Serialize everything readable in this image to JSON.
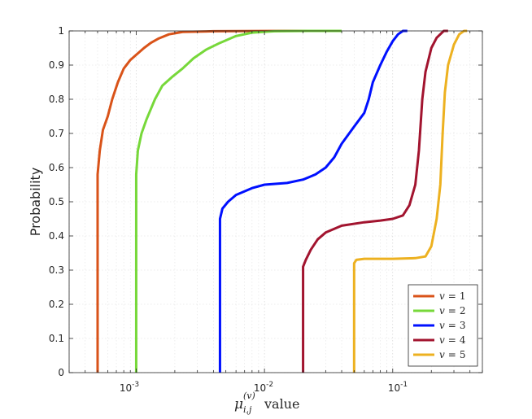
{
  "chart_data": {
    "type": "line",
    "x_scale": "log",
    "xlim": [
      0.0003,
      0.5
    ],
    "ylim": [
      0,
      1
    ],
    "x_major_ticks": [
      0.001,
      0.01,
      0.1
    ],
    "x_tick_labels": [
      {
        "base": "10",
        "exp": "-3"
      },
      {
        "base": "10",
        "exp": "-2"
      },
      {
        "base": "10",
        "exp": "-1"
      }
    ],
    "y_ticks": [
      0,
      0.1,
      0.2,
      0.3,
      0.4,
      0.5,
      0.6,
      0.7,
      0.8,
      0.9,
      1
    ],
    "y_tick_labels": [
      "0",
      "0.1",
      "0.2",
      "0.3",
      "0.4",
      "0.5",
      "0.6",
      "0.7",
      "0.8",
      "0.9",
      "1"
    ],
    "grid": true,
    "legend_position": "bottom-right",
    "xlabel": {
      "mu": "μ",
      "sup": "(v)",
      "sub": "i,j",
      "suffix": "value"
    },
    "ylabel": "Probability",
    "series": [
      {
        "name": "v = 1",
        "legend": {
          "var": "v",
          "eq": "=",
          "num": "1"
        },
        "color": "#D95319",
        "points": [
          [
            0.0005,
            0
          ],
          [
            0.0005,
            0.58
          ],
          [
            0.00052,
            0.65
          ],
          [
            0.00055,
            0.71
          ],
          [
            0.0006,
            0.75
          ],
          [
            0.00065,
            0.8
          ],
          [
            0.00072,
            0.85
          ],
          [
            0.0008,
            0.89
          ],
          [
            0.0009,
            0.915
          ],
          [
            0.001,
            0.93
          ],
          [
            0.00115,
            0.95
          ],
          [
            0.0013,
            0.965
          ],
          [
            0.0015,
            0.978
          ],
          [
            0.0018,
            0.99
          ],
          [
            0.0023,
            0.997
          ],
          [
            0.004,
            0.999
          ],
          [
            0.015,
            1
          ],
          [
            0.033,
            1
          ]
        ]
      },
      {
        "name": "v = 2",
        "legend": {
          "var": "v",
          "eq": "=",
          "num": "2"
        },
        "color": "#77D83A",
        "points": [
          [
            0.001,
            0
          ],
          [
            0.001,
            0.58
          ],
          [
            0.00103,
            0.65
          ],
          [
            0.0011,
            0.7
          ],
          [
            0.0012,
            0.74
          ],
          [
            0.0014,
            0.8
          ],
          [
            0.0016,
            0.84
          ],
          [
            0.0019,
            0.865
          ],
          [
            0.0023,
            0.89
          ],
          [
            0.0028,
            0.92
          ],
          [
            0.0035,
            0.945
          ],
          [
            0.0045,
            0.965
          ],
          [
            0.006,
            0.985
          ],
          [
            0.008,
            0.995
          ],
          [
            0.012,
            0.999
          ],
          [
            0.022,
            1
          ],
          [
            0.04,
            1
          ]
        ]
      },
      {
        "name": "v = 3",
        "legend": {
          "var": "v",
          "eq": "=",
          "num": "3"
        },
        "color": "#0010FF",
        "points": [
          [
            0.0045,
            0
          ],
          [
            0.0045,
            0.45
          ],
          [
            0.0047,
            0.48
          ],
          [
            0.0052,
            0.5
          ],
          [
            0.006,
            0.52
          ],
          [
            0.008,
            0.54
          ],
          [
            0.01,
            0.55
          ],
          [
            0.015,
            0.555
          ],
          [
            0.02,
            0.565
          ],
          [
            0.025,
            0.58
          ],
          [
            0.03,
            0.6
          ],
          [
            0.035,
            0.63
          ],
          [
            0.04,
            0.67
          ],
          [
            0.05,
            0.72
          ],
          [
            0.06,
            0.76
          ],
          [
            0.065,
            0.8
          ],
          [
            0.07,
            0.85
          ],
          [
            0.08,
            0.9
          ],
          [
            0.09,
            0.94
          ],
          [
            0.1,
            0.97
          ],
          [
            0.11,
            0.99
          ],
          [
            0.12,
            1
          ],
          [
            0.13,
            1
          ]
        ]
      },
      {
        "name": "v = 4",
        "legend": {
          "var": "v",
          "eq": "=",
          "num": "4"
        },
        "color": "#A2142F",
        "points": [
          [
            0.02,
            0
          ],
          [
            0.02,
            0.31
          ],
          [
            0.021,
            0.33
          ],
          [
            0.023,
            0.36
          ],
          [
            0.026,
            0.39
          ],
          [
            0.03,
            0.41
          ],
          [
            0.04,
            0.43
          ],
          [
            0.06,
            0.44
          ],
          [
            0.08,
            0.445
          ],
          [
            0.1,
            0.45
          ],
          [
            0.12,
            0.46
          ],
          [
            0.135,
            0.49
          ],
          [
            0.15,
            0.55
          ],
          [
            0.16,
            0.65
          ],
          [
            0.17,
            0.8
          ],
          [
            0.18,
            0.88
          ],
          [
            0.2,
            0.95
          ],
          [
            0.22,
            0.98
          ],
          [
            0.25,
            1
          ],
          [
            0.27,
            1
          ]
        ]
      },
      {
        "name": "v = 5",
        "legend": {
          "var": "v",
          "eq": "=",
          "num": "5"
        },
        "color": "#EDB120",
        "points": [
          [
            0.05,
            0
          ],
          [
            0.05,
            0.32
          ],
          [
            0.052,
            0.33
          ],
          [
            0.06,
            0.333
          ],
          [
            0.1,
            0.333
          ],
          [
            0.15,
            0.335
          ],
          [
            0.18,
            0.34
          ],
          [
            0.2,
            0.37
          ],
          [
            0.22,
            0.45
          ],
          [
            0.235,
            0.55
          ],
          [
            0.245,
            0.7
          ],
          [
            0.255,
            0.82
          ],
          [
            0.27,
            0.9
          ],
          [
            0.3,
            0.96
          ],
          [
            0.33,
            0.99
          ],
          [
            0.36,
            1
          ],
          [
            0.38,
            1
          ]
        ]
      }
    ]
  }
}
